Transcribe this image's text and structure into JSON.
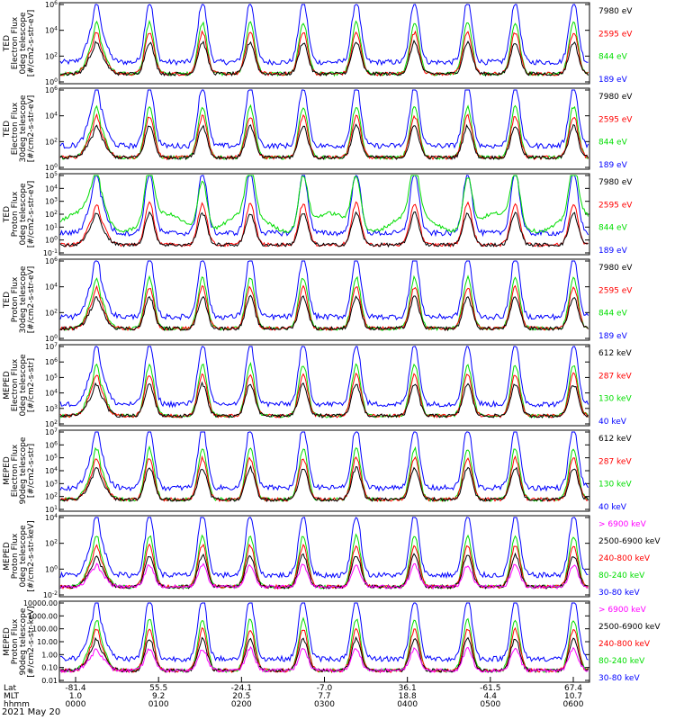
{
  "chart_data": [
    {
      "type": "line",
      "ylabel": "TED\nElectron Flux\n0deg telescope\n[#/cm2-s-str-eV]",
      "ytick_labels": [
        "10^0",
        "10^2",
        "10^4",
        "10^6"
      ],
      "series": [
        {
          "name": "7980 eV",
          "color": "#000000"
        },
        {
          "name": "2595 eV",
          "color": "#ff0000"
        },
        {
          "name": "844 eV",
          "color": "#00dd00"
        },
        {
          "name": "189 eV",
          "color": "#0000ff"
        }
      ]
    },
    {
      "type": "line",
      "ylabel": "TED\nElectron Flux\n30deg telescope\n[#/cm2-s-str-eV]",
      "ytick_labels": [
        "10^0",
        "10^2",
        "10^4",
        "10^6"
      ],
      "series": [
        {
          "name": "7980 eV",
          "color": "#000000"
        },
        {
          "name": "2595 eV",
          "color": "#ff0000"
        },
        {
          "name": "844 eV",
          "color": "#00dd00"
        },
        {
          "name": "189 eV",
          "color": "#0000ff"
        }
      ]
    },
    {
      "type": "line",
      "ylabel": "TED\nProton Flux\n0deg telescope\n[#/cm2-s-str-eV]",
      "ytick_labels": [
        "10^-1",
        "10^0",
        "10^1",
        "10^2",
        "10^3",
        "10^4",
        "10^5"
      ],
      "series": [
        {
          "name": "7980 eV",
          "color": "#000000"
        },
        {
          "name": "2595 eV",
          "color": "#ff0000"
        },
        {
          "name": "844 eV",
          "color": "#00dd00"
        },
        {
          "name": "189 eV",
          "color": "#0000ff"
        }
      ]
    },
    {
      "type": "line",
      "ylabel": "TED\nProton Flux\n30deg telescope\n[#/cm2-s-str-eV]",
      "ytick_labels": [
        "10^0",
        "10^2",
        "10^4",
        "10^6"
      ],
      "series": [
        {
          "name": "7980 eV",
          "color": "#000000"
        },
        {
          "name": "2595 eV",
          "color": "#ff0000"
        },
        {
          "name": "844 eV",
          "color": "#00dd00"
        },
        {
          "name": "189 eV",
          "color": "#0000ff"
        }
      ]
    },
    {
      "type": "line",
      "ylabel": "MEPED\nElectron Flux\n0deg telescope\n[#/cm2-s-str]",
      "ytick_labels": [
        "10^2",
        "10^3",
        "10^4",
        "10^5",
        "10^6",
        "10^7"
      ],
      "series": [
        {
          "name": "612 keV",
          "color": "#000000"
        },
        {
          "name": "287 keV",
          "color": "#ff0000"
        },
        {
          "name": "130 keV",
          "color": "#00dd00"
        },
        {
          "name": "40 keV",
          "color": "#0000ff"
        }
      ]
    },
    {
      "type": "line",
      "ylabel": "MEPED\nElectron Flux\n90deg telescope\n[#/cm2-s-str]",
      "ytick_labels": [
        "10^1",
        "10^2",
        "10^3",
        "10^4",
        "10^5",
        "10^6",
        "10^7"
      ],
      "series": [
        {
          "name": "612 keV",
          "color": "#000000"
        },
        {
          "name": "287 keV",
          "color": "#ff0000"
        },
        {
          "name": "130 keV",
          "color": "#00dd00"
        },
        {
          "name": "40 keV",
          "color": "#0000ff"
        }
      ]
    },
    {
      "type": "line",
      "ylabel": "MEPED\nProton Flux\n0deg telescope\n[#/cm2-s-str-keV]",
      "ytick_labels": [
        "10^-2",
        "10^0",
        "10^2",
        "10^4"
      ],
      "series": [
        {
          "name": "> 6900 keV",
          "color": "#ff00ff"
        },
        {
          "name": "2500-6900 keV",
          "color": "#000000"
        },
        {
          "name": "240-800 keV",
          "color": "#ff0000"
        },
        {
          "name": "80-240 keV",
          "color": "#00dd00"
        },
        {
          "name": "30-80 keV",
          "color": "#0000ff"
        }
      ]
    },
    {
      "type": "line",
      "ylabel": "MEPED\nProton Flux\n90deg telescope\n[#/cm2-s-str-keV]",
      "ytick_labels": [
        "10000.00",
        "1000.00",
        "100.00",
        "10.00",
        "1.00",
        "0.10",
        "0.01"
      ],
      "series": [
        {
          "name": "> 6900 keV",
          "color": "#ff00ff"
        },
        {
          "name": "2500-6900 keV",
          "color": "#000000"
        },
        {
          "name": "240-800 keV",
          "color": "#ff0000"
        },
        {
          "name": "80-240 keV",
          "color": "#00dd00"
        },
        {
          "name": "30-80 keV",
          "color": "#0000ff"
        }
      ]
    }
  ],
  "x_axis": {
    "row_labels": [
      "Lat",
      "MLT",
      "hhmm"
    ],
    "ticks": [
      {
        "lat": "-81.4",
        "mlt": "1.0",
        "hhmm": "0000"
      },
      {
        "lat": "55.5",
        "mlt": "9.2",
        "hhmm": "0100"
      },
      {
        "lat": "-24.1",
        "mlt": "20.5",
        "hhmm": "0200"
      },
      {
        "lat": "-7.0",
        "mlt": "7.7",
        "hhmm": "0300"
      },
      {
        "lat": "36.1",
        "mlt": "18.8",
        "hhmm": "0400"
      },
      {
        "lat": "-61.5",
        "mlt": "4.4",
        "hhmm": "0500"
      },
      {
        "lat": "67.4",
        "mlt": "10.7",
        "hhmm": "0600"
      }
    ]
  },
  "date_label": "2021 May 20"
}
